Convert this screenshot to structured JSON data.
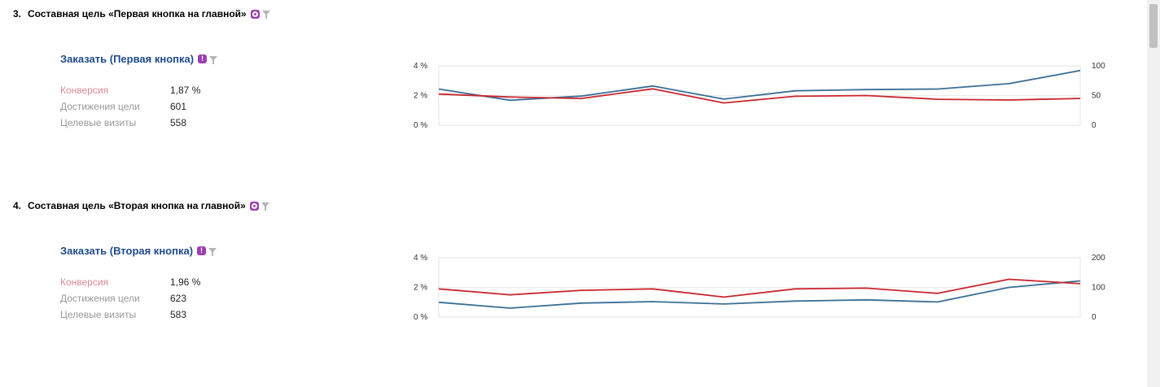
{
  "sections": [
    {
      "number": "3.",
      "title": "Составная цель «Первая кнопка на главной»",
      "goal": "Заказать (Первая кнопка)",
      "metrics": [
        {
          "label": "Конверсия",
          "value": "1,87 %"
        },
        {
          "label": "Достижения цели",
          "value": "601"
        },
        {
          "label": "Целевые визиты",
          "value": "558"
        }
      ],
      "chart_data": {
        "type": "line",
        "ylim_left": [
          0,
          4
        ],
        "yticks_left": [
          "4 %",
          "2 %",
          "0 %"
        ],
        "ylim_right": [
          0,
          100
        ],
        "yticks_right": [
          "100",
          "50",
          "0"
        ],
        "series": [
          {
            "color": "#3a6f96",
            "axis": "right",
            "values": [
              61,
              42,
              49,
              66,
              44,
              58,
              60,
              61,
              70,
              92
            ]
          },
          {
            "color": "#c8262e",
            "axis": "left",
            "values": [
              2.1,
              1.9,
              1.8,
              2.45,
              1.5,
              1.95,
              2.0,
              1.75,
              1.7,
              1.8
            ]
          }
        ]
      }
    },
    {
      "number": "4.",
      "title": "Составная цель «Вторая кнопка на главной»",
      "goal": "Заказать (Вторая кнопка)",
      "metrics": [
        {
          "label": "Конверсия",
          "value": "1,96 %"
        },
        {
          "label": "Достижения цели",
          "value": "623"
        },
        {
          "label": "Целевые визиты",
          "value": "583"
        }
      ],
      "chart_data": {
        "type": "line",
        "ylim_left": [
          0,
          4
        ],
        "yticks_left": [
          "4 %",
          "2 %",
          "0 %"
        ],
        "ylim_right": [
          0,
          200
        ],
        "yticks_right": [
          "200",
          "100",
          "0"
        ],
        "series": [
          {
            "color": "#3a6f96",
            "axis": "right",
            "values": [
              50,
              30,
              47,
              52,
              44,
              54,
              58,
              51,
              100,
              122
            ]
          },
          {
            "color": "#c8262e",
            "axis": "left",
            "values": [
              1.9,
              1.5,
              1.8,
              1.9,
              1.35,
              1.9,
              1.95,
              1.6,
              2.55,
              2.25
            ]
          }
        ]
      }
    }
  ],
  "colors": {
    "goal_link": "#1e4a8a",
    "conversion_label": "#d98a96",
    "badge": "#9b3fb0"
  }
}
